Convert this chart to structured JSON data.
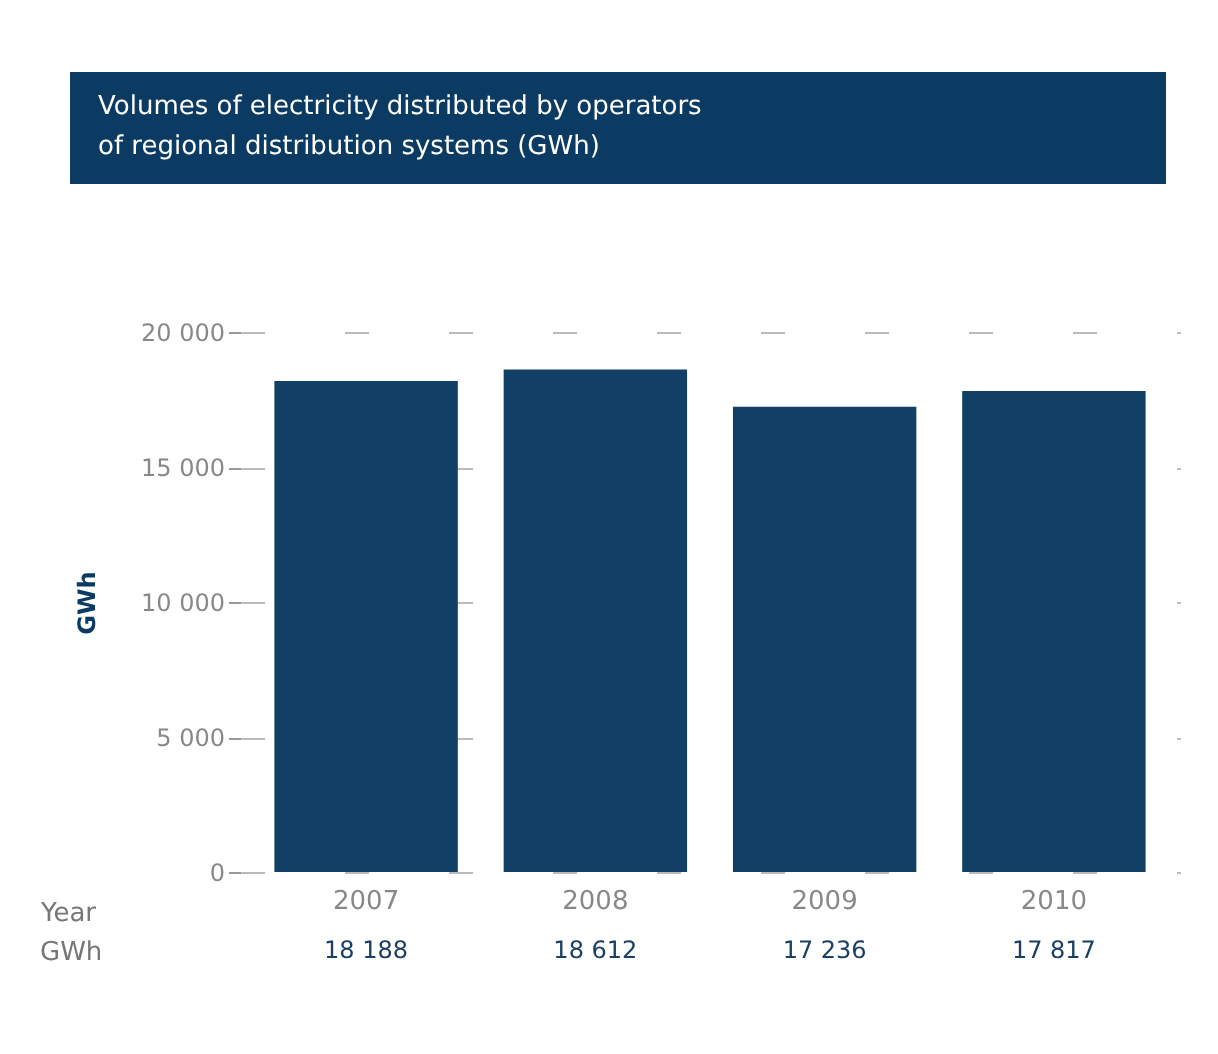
{
  "chart_data": {
    "type": "bar",
    "title": "Volumes of electricity distributed by operators\nof regional distribution systems (GWh)",
    "xlabel": "Year",
    "ylabel": "GWh",
    "categories": [
      "2007",
      "2008",
      "2009",
      "2010"
    ],
    "values": [
      18188,
      18612,
      17236,
      17817
    ],
    "value_labels": [
      "18 188",
      "18 612",
      "17 236",
      "17 817"
    ],
    "annotations": [
      "GWh"
    ],
    "color": "#123f66",
    "ylim": [
      0,
      20000
    ],
    "yticks": [
      {
        "value": 0,
        "label": "0"
      },
      {
        "value": 5000,
        "label": "5 000"
      },
      {
        "value": 10000,
        "label": "10 000"
      },
      {
        "value": 15000,
        "label": "15 000"
      },
      {
        "value": 20000,
        "label": "20 000"
      }
    ],
    "grid": "y"
  }
}
